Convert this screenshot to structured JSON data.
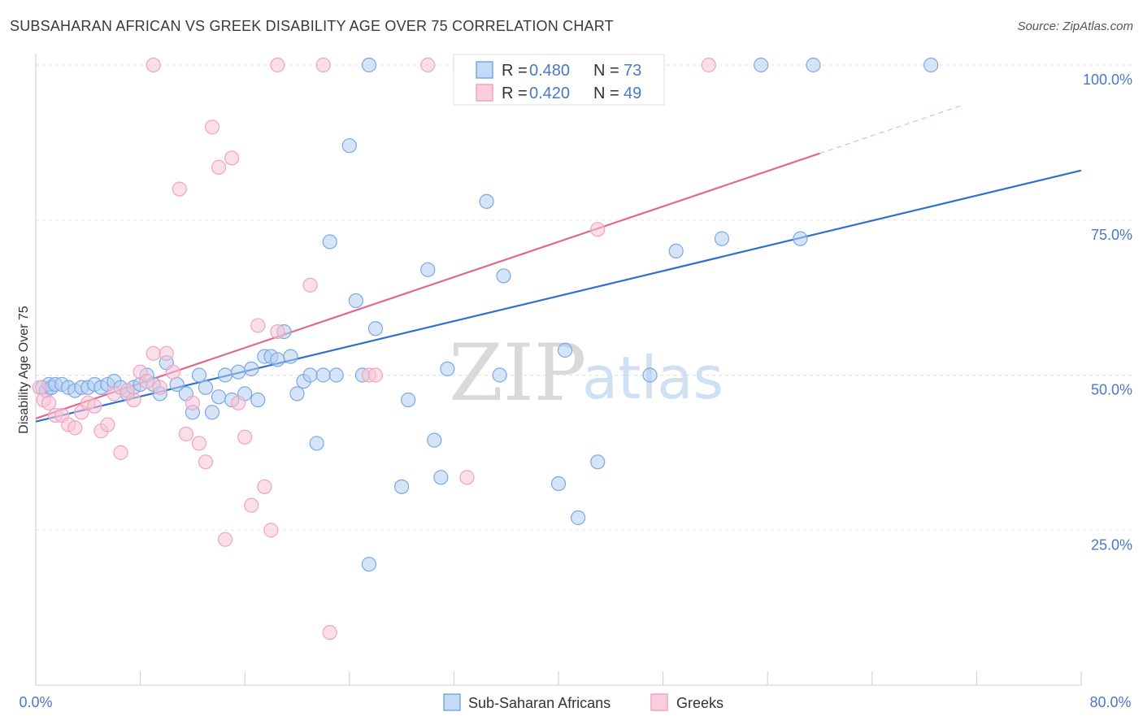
{
  "header": {
    "title": "SUBSAHARAN AFRICAN VS GREEK DISABILITY AGE OVER 75 CORRELATION CHART",
    "source": "Source: ZipAtlas.com"
  },
  "watermark": {
    "zip": "ZIP",
    "atlas": "atlas"
  },
  "legend": {
    "rows": [
      {
        "r_label": "R = ",
        "r_value": "0.480",
        "n_label": "N = ",
        "n_value": "73"
      },
      {
        "r_label": "R = ",
        "r_value": "0.420",
        "n_label": "N = ",
        "n_value": "49"
      }
    ]
  },
  "bottom_legend": [
    "Sub-Saharan Africans",
    "Greeks"
  ],
  "chart_data": {
    "type": "scatter",
    "title": "SUBSAHARAN AFRICAN VS GREEK DISABILITY AGE OVER 75 CORRELATION CHART",
    "xlabel": "",
    "ylabel": "Disability Age Over 75",
    "xlim": [
      0,
      80
    ],
    "ylim": [
      0,
      100
    ],
    "x_tick_labels": [
      "0.0%",
      "80.0%"
    ],
    "y_ticks": [
      25,
      50,
      75,
      100
    ],
    "y_tick_labels": [
      "25.0%",
      "50.0%",
      "75.0%",
      "100.0%"
    ],
    "grid": true,
    "legend_placement": "top-center",
    "series": [
      {
        "name": "Sub-Saharan Africans",
        "color": "#7aa8e6",
        "line_color": "#2f6fce",
        "R": 0.48,
        "N": 73,
        "trend": {
          "x": [
            0,
            80
          ],
          "y": [
            42.5,
            83
          ]
        },
        "points": [
          [
            0.5,
            48
          ],
          [
            0.8,
            47.5
          ],
          [
            1.0,
            48.5
          ],
          [
            1.2,
            48
          ],
          [
            1.5,
            48.5
          ],
          [
            2.0,
            48.5
          ],
          [
            2.5,
            48
          ],
          [
            3.0,
            47.5
          ],
          [
            3.5,
            48
          ],
          [
            4.0,
            48
          ],
          [
            4.5,
            48.5
          ],
          [
            5.0,
            48
          ],
          [
            5.5,
            48.5
          ],
          [
            6.0,
            49
          ],
          [
            6.5,
            48
          ],
          [
            7.0,
            47
          ],
          [
            7.5,
            48
          ],
          [
            8.0,
            48.5
          ],
          [
            8.5,
            50
          ],
          [
            9.0,
            48.5
          ],
          [
            9.5,
            47
          ],
          [
            10.0,
            52
          ],
          [
            10.8,
            48.5
          ],
          [
            11.5,
            47
          ],
          [
            12.0,
            44
          ],
          [
            12.5,
            50
          ],
          [
            13.0,
            48
          ],
          [
            13.5,
            44
          ],
          [
            14.0,
            46.5
          ],
          [
            14.5,
            50
          ],
          [
            15.0,
            46
          ],
          [
            15.5,
            50.5
          ],
          [
            16.0,
            47
          ],
          [
            16.5,
            51
          ],
          [
            17.0,
            46
          ],
          [
            17.5,
            53
          ],
          [
            18.0,
            53
          ],
          [
            18.5,
            52.5
          ],
          [
            19.0,
            57
          ],
          [
            19.5,
            53
          ],
          [
            20.0,
            47
          ],
          [
            20.5,
            49
          ],
          [
            21.0,
            50
          ],
          [
            21.5,
            39
          ],
          [
            22.0,
            50
          ],
          [
            22.5,
            71.5
          ],
          [
            23.0,
            50
          ],
          [
            24.0,
            87
          ],
          [
            24.5,
            62
          ],
          [
            25.0,
            50
          ],
          [
            25.5,
            19.5
          ],
          [
            26.0,
            57.5
          ],
          [
            28.0,
            32
          ],
          [
            28.5,
            46
          ],
          [
            30.0,
            67
          ],
          [
            30.5,
            39.5
          ],
          [
            31.0,
            33.5
          ],
          [
            31.5,
            51
          ],
          [
            34.5,
            78
          ],
          [
            35.5,
            50
          ],
          [
            35.8,
            66
          ],
          [
            40.0,
            32.5
          ],
          [
            40.5,
            54
          ],
          [
            41.5,
            27
          ],
          [
            43.0,
            36
          ],
          [
            47.0,
            50
          ],
          [
            49.0,
            70
          ],
          [
            52.5,
            72
          ],
          [
            25.5,
            100
          ],
          [
            55.5,
            100
          ],
          [
            58.5,
            72
          ],
          [
            59.5,
            100
          ],
          [
            68.5,
            100
          ]
        ]
      },
      {
        "name": "Greeks",
        "color": "#f2a3bf",
        "line_color": "#e0688f",
        "R": 0.42,
        "N": 49,
        "trend": {
          "x": [
            0,
            80
          ],
          "y": [
            43,
            100
          ]
        },
        "points": [
          [
            0.3,
            48
          ],
          [
            0.6,
            46
          ],
          [
            1.0,
            45.5
          ],
          [
            1.5,
            43.5
          ],
          [
            2.0,
            43.5
          ],
          [
            2.5,
            42
          ],
          [
            3.0,
            41.5
          ],
          [
            3.5,
            44
          ],
          [
            4.0,
            45.5
          ],
          [
            4.5,
            45
          ],
          [
            5.0,
            41
          ],
          [
            5.5,
            42
          ],
          [
            6.0,
            47
          ],
          [
            6.5,
            37.5
          ],
          [
            7.0,
            47.5
          ],
          [
            7.5,
            46
          ],
          [
            8.0,
            50.5
          ],
          [
            8.5,
            49
          ],
          [
            9.0,
            53.5
          ],
          [
            9.5,
            48
          ],
          [
            10.0,
            53.5
          ],
          [
            10.5,
            50.5
          ],
          [
            11.0,
            80
          ],
          [
            11.5,
            40.5
          ],
          [
            12.0,
            45.5
          ],
          [
            12.5,
            39
          ],
          [
            13.0,
            36
          ],
          [
            13.5,
            90
          ],
          [
            14.0,
            83.5
          ],
          [
            14.5,
            23.5
          ],
          [
            15.0,
            85
          ],
          [
            15.5,
            45.5
          ],
          [
            16.0,
            40
          ],
          [
            16.5,
            29
          ],
          [
            17.0,
            58
          ],
          [
            17.5,
            32
          ],
          [
            18.0,
            25
          ],
          [
            18.5,
            57
          ],
          [
            21.0,
            64.5
          ],
          [
            22.5,
            8.5
          ],
          [
            25.5,
            50
          ],
          [
            26.0,
            50
          ],
          [
            30.0,
            100
          ],
          [
            33.0,
            33.5
          ],
          [
            43.0,
            73.5
          ],
          [
            51.5,
            100
          ],
          [
            9.0,
            100
          ],
          [
            18.5,
            100
          ],
          [
            22.0,
            100
          ]
        ]
      }
    ]
  }
}
